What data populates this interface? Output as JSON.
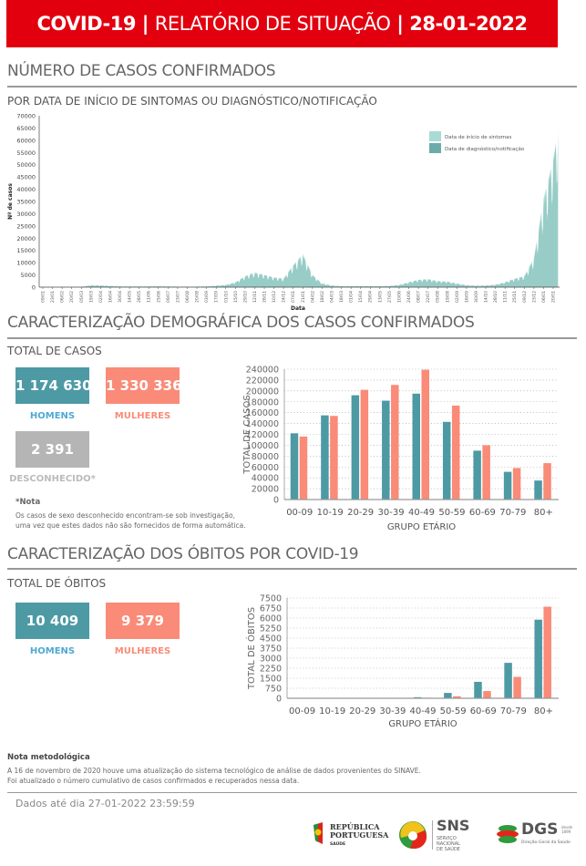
{
  "header": {
    "title_bold": "COVID-19",
    "sep1": " | ",
    "title_main": "RELATÓRIO DE SITUAÇÃO",
    "sep2": " | ",
    "date": "28-01-2022"
  },
  "section1": {
    "title": "NÚMERO DE CASOS CONFIRMADOS",
    "subtitle": "POR DATA DE INÍCIO DE SINTOMAS OU DIAGNÓSTICO/NOTIFICAÇÃO"
  },
  "section2": {
    "title": "CARACTERIZAÇÃO DEMOGRÁFICA DOS CASOS CONFIRMADOS",
    "total_label": "TOTAL DE CASOS",
    "men_value": "1 174 630",
    "men_label": "HOMENS",
    "women_value": "1 330 336",
    "women_label": "MULHERES",
    "unknown_value": "2 391",
    "unknown_label": "DESCONHECIDO*",
    "note_title": "*Nota",
    "note_line1": "Os casos de sexo desconhecido encontram-se sob investigação,",
    "note_line2": "uma vez que estes dados não são fornecidos de forma automática."
  },
  "section3": {
    "title": "CARACTERIZAÇÃO DOS ÓBITOS POR COVID-19",
    "total_label": "TOTAL DE ÓBITOS",
    "men_value": "10 409",
    "men_label": "HOMENS",
    "women_value": "9 379",
    "women_label": "MULHERES"
  },
  "method_note": {
    "title": "Nota metodológica",
    "line1": "A 16 de novembro de 2020 houve uma atualização do sistema tecnológico de análise de dados provenientes do SINAVE.",
    "line2": "Foi atualizado o número cumulativo de casos confirmados e recuperados nessa data."
  },
  "footer": {
    "data_until": "Dados até dia 27-01-2022 23:59:59",
    "logo1_line1": "REPÚBLICA",
    "logo1_line2": "PORTUGUESA",
    "logo1_sub": "SAÚDE",
    "logo2_main": "SNS",
    "logo2_line1": "SERVIÇO NACIONAL",
    "logo2_line2": "DE SAÚDE",
    "logo3_main": "DGS",
    "logo3_since": "desde 1899",
    "logo3_sub": "Direção-Geral da Saúde"
  },
  "colors": {
    "header": "#e2000f",
    "men": "#4d9aa5",
    "women": "#f98b78",
    "unknown": "#b5b5b5",
    "men_label": "#4ea9d3",
    "women_label": "#f98b78",
    "symptoms": "#a9dad3",
    "diagnosis": "#6aada8"
  },
  "chart_data": [
    {
      "type": "area",
      "title": "",
      "xlabel": "Data",
      "ylabel": "Nº de casos",
      "ylim": [
        0,
        70000
      ],
      "yticks": [
        0,
        5000,
        10000,
        15000,
        20000,
        25000,
        30000,
        35000,
        40000,
        45000,
        50000,
        55000,
        60000,
        65000,
        70000
      ],
      "x": [
        "09/01",
        "23/01",
        "06/02",
        "20/02",
        "05/03",
        "19/03",
        "02/04",
        "16/04",
        "30/04",
        "14/05",
        "28/05",
        "11/06",
        "25/06",
        "09/07",
        "23/07",
        "06/08",
        "20/08",
        "03/09",
        "17/09",
        "01/10",
        "15/10",
        "29/10",
        "12/11",
        "26/11",
        "10/12",
        "24/12",
        "07/01",
        "21/01",
        "04/02",
        "18/02",
        "04/03",
        "18/03",
        "01/04",
        "15/04",
        "29/04",
        "13/05",
        "27/05",
        "10/06",
        "24/06",
        "08/07",
        "22/07",
        "05/08",
        "19/08",
        "02/09",
        "16/09",
        "30/09",
        "14/10",
        "28/10",
        "11/11",
        "25/11",
        "09/12",
        "23/12",
        "06/01",
        "20/01"
      ],
      "legend_position": "top-right",
      "series": [
        {
          "name": "Data de início de sintomas",
          "values": [
            0,
            0,
            0,
            0,
            100,
            800,
            700,
            500,
            300,
            250,
            250,
            300,
            350,
            300,
            200,
            200,
            200,
            300,
            600,
            900,
            2000,
            4500,
            6000,
            5000,
            4000,
            3500,
            9000,
            13500,
            5000,
            1500,
            700,
            400,
            400,
            450,
            400,
            400,
            500,
            900,
            2000,
            3000,
            3300,
            2500,
            2300,
            1500,
            800,
            600,
            700,
            1000,
            2000,
            3500,
            4500,
            12000,
            36000,
            52000
          ]
        },
        {
          "name": "Data de diagnóstico/notificação",
          "values": [
            0,
            0,
            0,
            0,
            80,
            700,
            650,
            450,
            300,
            250,
            250,
            300,
            330,
            300,
            200,
            200,
            200,
            280,
            550,
            850,
            1900,
            4200,
            5600,
            4800,
            3800,
            3300,
            8500,
            12500,
            4800,
            1400,
            650,
            380,
            380,
            420,
            380,
            380,
            480,
            850,
            1900,
            2900,
            3100,
            2400,
            2200,
            1400,
            750,
            550,
            650,
            950,
            1900,
            3300,
            4300,
            11000,
            33000,
            50000
          ]
        }
      ]
    },
    {
      "type": "bar",
      "xlabel": "GRUPO ETÁRIO",
      "ylabel": "TOTAL DE CASOS",
      "ylim": [
        0,
        240000
      ],
      "yticks": [
        0,
        20000,
        40000,
        60000,
        80000,
        100000,
        120000,
        140000,
        160000,
        180000,
        200000,
        220000,
        240000
      ],
      "categories": [
        "00-09",
        "10-19",
        "20-29",
        "30-39",
        "40-49",
        "50-59",
        "60-69",
        "70-79",
        "80+"
      ],
      "series": [
        {
          "name": "Homens",
          "values": [
            122000,
            155000,
            192000,
            182000,
            195000,
            143000,
            90000,
            51000,
            35000
          ]
        },
        {
          "name": "Mulheres",
          "values": [
            116000,
            154000,
            202000,
            211000,
            239000,
            173000,
            100000,
            58000,
            67000
          ]
        }
      ]
    },
    {
      "type": "bar",
      "xlabel": "GRUPO ETÁRIO",
      "ylabel": "TOTAL DE ÓBITOS",
      "ylim": [
        0,
        7500
      ],
      "yticks": [
        0,
        750,
        1500,
        2250,
        3000,
        3750,
        4500,
        5250,
        6000,
        6750,
        7500
      ],
      "categories": [
        "00-09",
        "10-19",
        "20-29",
        "30-39",
        "40-49",
        "50-59",
        "60-69",
        "70-79",
        "80+"
      ],
      "series": [
        {
          "name": "Homens",
          "values": [
            0,
            1,
            5,
            15,
            80,
            400,
            1230,
            2650,
            5880
          ]
        },
        {
          "name": "Mulheres",
          "values": [
            0,
            1,
            3,
            10,
            40,
            150,
            540,
            1600,
            6850
          ]
        }
      ]
    }
  ]
}
